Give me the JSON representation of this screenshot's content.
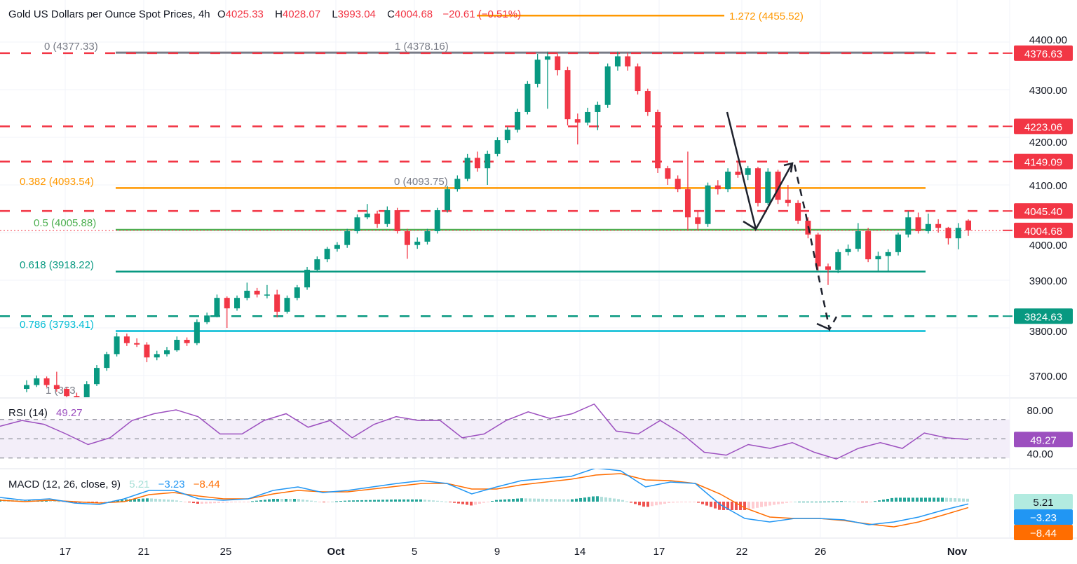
{
  "header": {
    "title": "Gold US Dollars per Ounce Spot Prices, 4h",
    "open_label": "O",
    "open": "4025.33",
    "high_label": "H",
    "high": "4028.07",
    "low_label": "L",
    "low": "3993.04",
    "close_label": "C",
    "close": "4004.68",
    "change": "−20.61 (−0.51%)"
  },
  "colors": {
    "up": "#089981",
    "down": "#f23645",
    "fib_gray": "#787b86",
    "fib_orange": "#ff9800",
    "fib_green": "#4caf50",
    "fib_teal": "#089981",
    "fib_cyan": "#00bcd4",
    "rsi": "#9c4fbf",
    "macd": "#2196f3",
    "signal": "#ff6d00",
    "hist_up": "#26a69a",
    "hist_up_light": "#b2dfdb",
    "hist_down": "#ef5350",
    "hist_down_light": "#ffcdd2"
  },
  "chart_data": {
    "type": "candlestick",
    "title": "Gold US Dollars per Ounce Spot Prices, 4h",
    "ylim": [
      3654,
      4480
    ],
    "price_ticks": [
      "4400.00",
      "4300.00",
      "4200.00",
      "4100.00",
      "4000.00",
      "3900.00",
      "3800.00",
      "3700.00"
    ],
    "price_tick_values": [
      4400,
      4300,
      4200,
      4100,
      4000,
      3900,
      3800,
      3700
    ],
    "x_ticks": [
      "17",
      "21",
      "25",
      "Oct",
      "5",
      "9",
      "14",
      "17",
      "22",
      "26",
      "Nov"
    ],
    "grid": true,
    "candles_ohlc": [
      [
        3672,
        3690,
        3665,
        3680
      ],
      [
        3680,
        3700,
        3676,
        3694
      ],
      [
        3694,
        3698,
        3675,
        3680
      ],
      [
        3680,
        3708,
        3666,
        3672
      ],
      [
        3672,
        3676,
        3650,
        3657
      ],
      [
        3657,
        3664,
        3645,
        3650
      ],
      [
        3650,
        3688,
        3648,
        3682
      ],
      [
        3682,
        3722,
        3678,
        3716
      ],
      [
        3716,
        3750,
        3710,
        3745
      ],
      [
        3745,
        3790,
        3740,
        3782
      ],
      [
        3782,
        3788,
        3762,
        3768
      ],
      [
        3768,
        3778,
        3760,
        3765
      ],
      [
        3765,
        3770,
        3728,
        3738
      ],
      [
        3738,
        3752,
        3732,
        3745
      ],
      [
        3745,
        3760,
        3740,
        3753
      ],
      [
        3753,
        3782,
        3750,
        3775
      ],
      [
        3775,
        3780,
        3762,
        3768
      ],
      [
        3768,
        3818,
        3764,
        3812
      ],
      [
        3812,
        3832,
        3808,
        3826
      ],
      [
        3826,
        3870,
        3822,
        3863
      ],
      [
        3863,
        3866,
        3800,
        3841
      ],
      [
        3841,
        3868,
        3836,
        3863
      ],
      [
        3863,
        3895,
        3858,
        3878
      ],
      [
        3878,
        3884,
        3864,
        3870
      ],
      [
        3870,
        3890,
        3862,
        3870
      ],
      [
        3870,
        3880,
        3822,
        3834
      ],
      [
        3834,
        3868,
        3830,
        3863
      ],
      [
        3863,
        3890,
        3858,
        3885
      ],
      [
        3885,
        3928,
        3880,
        3922
      ],
      [
        3922,
        3950,
        3918,
        3944
      ],
      [
        3944,
        3970,
        3938,
        3966
      ],
      [
        3966,
        3980,
        3960,
        3974
      ],
      [
        3974,
        4008,
        3968,
        4003
      ],
      [
        4003,
        4038,
        3998,
        4032
      ],
      [
        4032,
        4060,
        4028,
        4040
      ],
      [
        4040,
        4046,
        4010,
        4018
      ],
      [
        4018,
        4055,
        4012,
        4047
      ],
      [
        4047,
        4052,
        3998,
        4003
      ],
      [
        4003,
        4008,
        3945,
        3974
      ],
      [
        3974,
        3990,
        3966,
        3981
      ],
      [
        3981,
        4008,
        3975,
        4003
      ],
      [
        4003,
        4052,
        3998,
        4047
      ],
      [
        4047,
        4098,
        4042,
        4091
      ],
      [
        4091,
        4120,
        4086,
        4113
      ],
      [
        4113,
        4165,
        4108,
        4157
      ],
      [
        4157,
        4170,
        4128,
        4135
      ],
      [
        4135,
        4172,
        4100,
        4165
      ],
      [
        4165,
        4200,
        4160,
        4194
      ],
      [
        4194,
        4222,
        4188,
        4216
      ],
      [
        4216,
        4260,
        4210,
        4253
      ],
      [
        4253,
        4318,
        4248,
        4312
      ],
      [
        4312,
        4375,
        4305,
        4363
      ],
      [
        4363,
        4380,
        4260,
        4370
      ],
      [
        4370,
        4378,
        4330,
        4341
      ],
      [
        4341,
        4348,
        4225,
        4238
      ],
      [
        4238,
        4250,
        4185,
        4231
      ],
      [
        4231,
        4262,
        4225,
        4253
      ],
      [
        4253,
        4275,
        4215,
        4268
      ],
      [
        4268,
        4355,
        4262,
        4349
      ],
      [
        4349,
        4380,
        4340,
        4370
      ],
      [
        4370,
        4378,
        4340,
        4349
      ],
      [
        4349,
        4355,
        4290,
        4297
      ],
      [
        4297,
        4302,
        4245,
        4253
      ],
      [
        4253,
        4258,
        4125,
        4135
      ],
      [
        4135,
        4140,
        4100,
        4113
      ],
      [
        4113,
        4120,
        4085,
        4091
      ],
      [
        4091,
        4170,
        4005,
        4032
      ],
      [
        4032,
        4045,
        4005,
        4018
      ],
      [
        4018,
        4105,
        4012,
        4099
      ],
      [
        4099,
        4110,
        4080,
        4091
      ],
      [
        4091,
        4135,
        4085,
        4128
      ],
      [
        4128,
        4150,
        4115,
        4121
      ],
      [
        4121,
        4140,
        4110,
        4135
      ],
      [
        4135,
        4138,
        4055,
        4062
      ],
      [
        4062,
        4135,
        4058,
        4128
      ],
      [
        4128,
        4132,
        4060,
        4069
      ],
      [
        4069,
        4100,
        4055,
        4062
      ],
      [
        4062,
        4068,
        4018,
        4025
      ],
      [
        4025,
        4032,
        3988,
        3996
      ],
      [
        3996,
        4000,
        3920,
        3929
      ],
      [
        3929,
        3935,
        3890,
        3922
      ],
      [
        3922,
        3965,
        3915,
        3959
      ],
      [
        3959,
        3975,
        3952,
        3966
      ],
      [
        3966,
        4020,
        3960,
        4003
      ],
      [
        4003,
        4010,
        3938,
        3944
      ],
      [
        3944,
        3960,
        3920,
        3951
      ],
      [
        3951,
        3965,
        3918,
        3959
      ],
      [
        3959,
        4000,
        3952,
        3996
      ],
      [
        3996,
        4045,
        3990,
        4032
      ],
      [
        4032,
        4042,
        3998,
        4003
      ],
      [
        4003,
        4040,
        3998,
        4018
      ],
      [
        4018,
        4028,
        4000,
        4010
      ],
      [
        4010,
        4012,
        3975,
        3988
      ],
      [
        3988,
        4020,
        3965,
        4010
      ],
      [
        4025.33,
        4028.07,
        3993.04,
        4004.68
      ]
    ],
    "horizontal_levels": [
      {
        "value": 4376.63,
        "label": "4376.63",
        "color": "#f23645",
        "style": "dashed"
      },
      {
        "value": 4223.06,
        "label": "4223.06",
        "color": "#f23645",
        "style": "dashed"
      },
      {
        "value": 4149.09,
        "label": "4149.09",
        "color": "#f23645",
        "style": "dashed"
      },
      {
        "value": 4045.4,
        "label": "4045.40",
        "color": "#f23645",
        "style": "dashed"
      },
      {
        "value": 3824.63,
        "label": "3824.63",
        "color": "#089981",
        "style": "dashed"
      }
    ],
    "last_price": {
      "value": 4004.68,
      "label": "4004.68",
      "color": "#f23645"
    },
    "fib_levels": [
      {
        "value": 4455.52,
        "label": "1.272 (4455.52)",
        "color": "#ff9800"
      },
      {
        "value": 4378.16,
        "label": "1 (4378.16)",
        "color": "#787b86"
      },
      {
        "value": 4377.33,
        "label": "0 (4377.33)",
        "color": "#787b86"
      },
      {
        "value": 4093.75,
        "label": "0 (4093.75)",
        "color": "#787b86"
      },
      {
        "value": 4093.54,
        "label": "0.382 (4093.54)",
        "color": "#ff9800"
      },
      {
        "value": 4005.88,
        "label": "0.5 (4005.88)",
        "color": "#4caf50"
      },
      {
        "value": 3918.22,
        "label": "0.618 (3918.22)",
        "color": "#089981"
      },
      {
        "value": 3793.41,
        "label": "0.786 (3793.41)",
        "color": "#00bcd4"
      },
      {
        "value": 3632,
        "label": "1 (363",
        "color": "#787b86"
      }
    ],
    "rsi": {
      "label": "RSI (14)",
      "value": "49.27",
      "ylim": [
        20,
        95
      ],
      "ticks": [
        "80.00",
        "40.00"
      ],
      "tick_values": [
        80,
        40
      ],
      "band": [
        30,
        70
      ],
      "mid": 50,
      "values": [
        63,
        69,
        65,
        55,
        44,
        51,
        69,
        76,
        80,
        73,
        55,
        55,
        69,
        76,
        62,
        69,
        51,
        65,
        73,
        69,
        69,
        51,
        55,
        69,
        78,
        71,
        76,
        86,
        58,
        55,
        69,
        55,
        36,
        33,
        44,
        40,
        46,
        36,
        29,
        40,
        46,
        40,
        56,
        51,
        49.27
      ]
    },
    "macd": {
      "label": "MACD (12, 26, close, 9)",
      "hist_value": "5.21",
      "macd_value": "−3.23",
      "signal_value": "−8.44",
      "macd_line": [
        6,
        2,
        4,
        -2,
        -4,
        4,
        16,
        16,
        4,
        2,
        4,
        16,
        21,
        13,
        16,
        21,
        26,
        30,
        26,
        11,
        21,
        30,
        33,
        36,
        48,
        44,
        21,
        28,
        26,
        -4,
        -24,
        -29,
        -24,
        -24,
        -26,
        -33,
        -29,
        -22,
        -12,
        -3.23
      ],
      "signal_line": [
        2,
        0,
        2,
        0,
        -2,
        0,
        10,
        13,
        8,
        4,
        4,
        11,
        16,
        14,
        14,
        18,
        22,
        26,
        26,
        18,
        18,
        24,
        28,
        32,
        38,
        40,
        31,
        30,
        26,
        11,
        -9,
        -22,
        -24,
        -24,
        -27,
        -32,
        -36,
        -29,
        -19,
        -8.44
      ]
    }
  }
}
